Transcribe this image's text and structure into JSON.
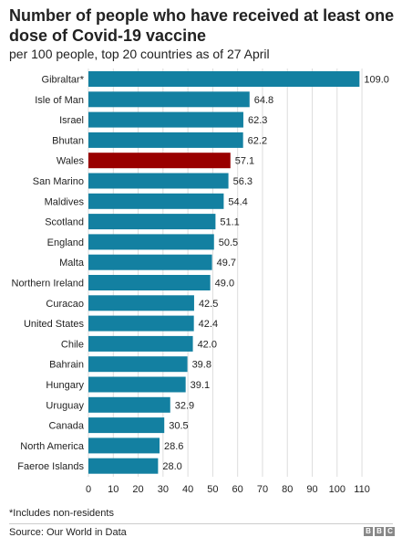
{
  "header": {
    "title": "Number of people who have received at least one dose of Covid-19 vaccine",
    "subtitle": "per 100 people, top 20 countries as of 27 April"
  },
  "footer": {
    "footnote": "*Includes non-residents",
    "source": "Source: Our World in Data",
    "logo_letters": [
      "B",
      "B",
      "C"
    ]
  },
  "colors": {
    "bar": "#1380a1",
    "highlight": "#990000",
    "gridline": "#dddddd"
  },
  "chart_data": {
    "type": "bar",
    "orientation": "horizontal",
    "title": "Number of people who have received at least one dose of Covid-19 vaccine",
    "subtitle": "per 100 people, top 20 countries as of 27 April",
    "categories": [
      "Gibraltar*",
      "Isle of Man",
      "Israel",
      "Bhutan",
      "Wales",
      "San Marino",
      "Maldives",
      "Scotland",
      "England",
      "Malta",
      "Northern Ireland",
      "Curacao",
      "United States",
      "Chile",
      "Bahrain",
      "Hungary",
      "Uruguay",
      "Canada",
      "North America",
      "Faeroe Islands"
    ],
    "values": [
      109.0,
      64.8,
      62.3,
      62.2,
      57.1,
      56.3,
      54.4,
      51.1,
      50.5,
      49.7,
      49.0,
      42.5,
      42.4,
      42.0,
      39.8,
      39.1,
      32.9,
      30.5,
      28.6,
      28.0
    ],
    "value_labels": [
      "109.0",
      "64.8",
      "62.3",
      "62.2",
      "57.1",
      "56.3",
      "54.4",
      "51.1",
      "50.5",
      "49.7",
      "49.0",
      "42.5",
      "42.4",
      "42.0",
      "39.8",
      "39.1",
      "32.9",
      "30.5",
      "28.6",
      "28.0"
    ],
    "highlight_category": "Wales",
    "xlim": [
      0,
      110
    ],
    "xticks": [
      0,
      10,
      20,
      30,
      40,
      50,
      60,
      70,
      80,
      90,
      100,
      110
    ],
    "xlabel": "",
    "ylabel": "",
    "grid": true
  }
}
